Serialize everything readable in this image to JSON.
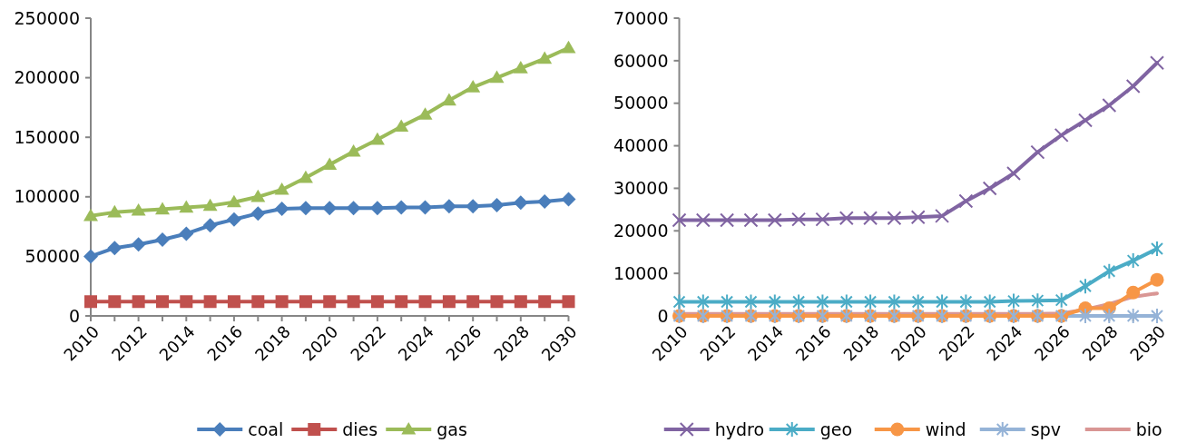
{
  "chart_data": [
    {
      "type": "line",
      "x": [
        "2010",
        "2011",
        "2012",
        "2013",
        "2014",
        "2015",
        "2016",
        "2017",
        "2018",
        "2019",
        "2020",
        "2021",
        "2022",
        "2023",
        "2024",
        "2025",
        "2026",
        "2027",
        "2028",
        "2029",
        "2030"
      ],
      "xlim": [
        "2010",
        "2030"
      ],
      "xticks": [
        {
          "value": "2010",
          "label": "2010"
        },
        {
          "value": "2012",
          "label": "2012"
        },
        {
          "value": "2014",
          "label": "2014"
        },
        {
          "value": "2016",
          "label": "2016"
        },
        {
          "value": "2018",
          "label": "2018"
        },
        {
          "value": "2020",
          "label": "2020"
        },
        {
          "value": "2022",
          "label": "2022"
        },
        {
          "value": "2024",
          "label": "2024"
        },
        {
          "value": "2026",
          "label": "2026"
        },
        {
          "value": "2028",
          "label": "2028"
        },
        {
          "value": "2030",
          "label": "2030"
        }
      ],
      "ylim": [
        0,
        250000
      ],
      "yticks": [
        0,
        50000,
        100000,
        150000,
        200000,
        250000
      ],
      "grid": false,
      "legend": "bottom",
      "series": [
        {
          "name": "coal",
          "color": "#4a7ebb",
          "marker": "diamond",
          "values": [
            50000,
            57000,
            60000,
            64000,
            69000,
            76000,
            81000,
            86000,
            90000,
            90500,
            90500,
            90500,
            90500,
            91000,
            91000,
            92000,
            92000,
            93000,
            95000,
            96000,
            98000
          ]
        },
        {
          "name": "dies",
          "color": "#c0504d",
          "marker": "square",
          "values": [
            12000,
            12000,
            12000,
            12000,
            12000,
            12000,
            12000,
            12000,
            12000,
            12000,
            12000,
            12000,
            12000,
            12000,
            12000,
            12000,
            12000,
            12000,
            12000,
            12000,
            12000
          ]
        },
        {
          "name": "gas",
          "color": "#9bbb59",
          "marker": "triangle",
          "values": [
            84000,
            87000,
            88500,
            89500,
            91000,
            92500,
            95500,
            100000,
            106000,
            116000,
            127000,
            138000,
            148000,
            159000,
            169000,
            181000,
            192000,
            200000,
            208000,
            216000,
            225000
          ]
        }
      ]
    },
    {
      "type": "line",
      "x": [
        "2010",
        "2011",
        "2012",
        "2013",
        "2014",
        "2015",
        "2016",
        "2017",
        "2018",
        "2019",
        "2020",
        "2021",
        "2022",
        "2023",
        "2024",
        "2025",
        "2026",
        "2027",
        "2028",
        "2029",
        "2030"
      ],
      "xlim": [
        "2010",
        "2030"
      ],
      "xticks": [
        {
          "value": "2010",
          "label": "2010"
        },
        {
          "value": "2012",
          "label": "2012"
        },
        {
          "value": "2014",
          "label": "2014"
        },
        {
          "value": "2016",
          "label": "2016"
        },
        {
          "value": "2018",
          "label": "2018"
        },
        {
          "value": "2020",
          "label": "2020"
        },
        {
          "value": "2022",
          "label": "2022"
        },
        {
          "value": "2024",
          "label": "2024"
        },
        {
          "value": "2026",
          "label": "2026"
        },
        {
          "value": "2028",
          "label": "2028"
        },
        {
          "value": "2030",
          "label": "2030"
        }
      ],
      "ylim": [
        0,
        70000
      ],
      "yticks": [
        0,
        10000,
        20000,
        30000,
        40000,
        50000,
        60000,
        70000
      ],
      "grid": false,
      "legend": "bottom",
      "series": [
        {
          "name": "hydro",
          "color": "#8064a2",
          "marker": "x",
          "values": [
            22500,
            22500,
            22500,
            22500,
            22500,
            22700,
            22700,
            23000,
            23000,
            23000,
            23200,
            23500,
            27000,
            30000,
            33500,
            38500,
            42500,
            46000,
            49500,
            54000,
            59500
          ]
        },
        {
          "name": "geo",
          "color": "#4bacc6",
          "marker": "cross",
          "values": [
            3300,
            3300,
            3300,
            3300,
            3300,
            3300,
            3300,
            3300,
            3300,
            3300,
            3300,
            3300,
            3300,
            3300,
            3500,
            3600,
            3700,
            7000,
            10500,
            13000,
            15800
          ]
        },
        {
          "name": "wind",
          "color": "#f79646",
          "marker": "circle",
          "values": [
            0,
            0,
            0,
            0,
            0,
            0,
            0,
            0,
            0,
            0,
            0,
            0,
            0,
            0,
            0,
            0,
            0,
            1800,
            1800,
            5500,
            8500
          ]
        },
        {
          "name": "spv",
          "color": "#95b3d7",
          "marker": "cross",
          "values": [
            0,
            0,
            0,
            0,
            0,
            0,
            0,
            0,
            0,
            0,
            0,
            0,
            0,
            0,
            0,
            0,
            0,
            0,
            0,
            0,
            0
          ]
        },
        {
          "name": "bio",
          "color": "#d99694",
          "marker": "none",
          "values": [
            500,
            500,
            500,
            500,
            500,
            500,
            500,
            500,
            500,
            500,
            500,
            500,
            500,
            500,
            500,
            500,
            600,
            1500,
            2800,
            4500,
            5300
          ]
        }
      ]
    }
  ]
}
